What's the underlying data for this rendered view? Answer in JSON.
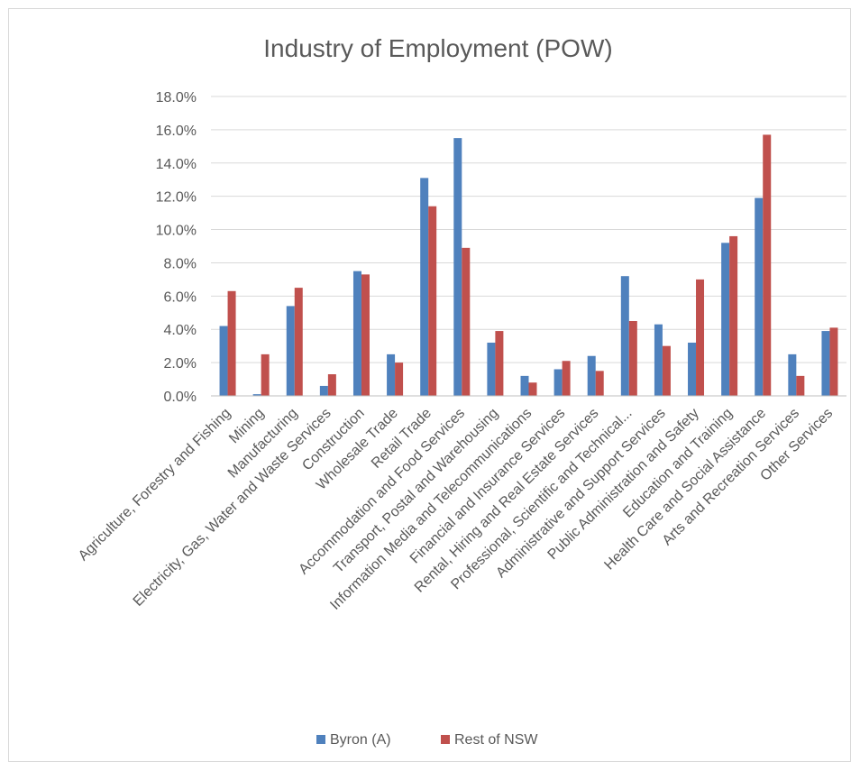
{
  "chart_data": {
    "type": "bar",
    "title": "Industry of Employment  (POW)",
    "xlabel": "",
    "ylabel": "",
    "ylim": [
      0,
      18
    ],
    "yticks": [
      "0.0%",
      "2.0%",
      "4.0%",
      "6.0%",
      "8.0%",
      "10.0%",
      "12.0%",
      "14.0%",
      "16.0%",
      "18.0%"
    ],
    "grid": true,
    "legend": "bottom",
    "colors": [
      "#4f81bd",
      "#c0504d"
    ],
    "categories": [
      "Agriculture, Forestry and Fishing",
      "Mining",
      "Manufacturing",
      "Electricity, Gas, Water and Waste Services",
      "Construction",
      "Wholesale Trade",
      "Retail Trade",
      "Accommodation and Food Services",
      "Transport, Postal and Warehousing",
      "Information Media and Telecommunications",
      "Financial and Insurance Services",
      "Rental, Hiring and Real Estate Services",
      "Professional, Scientific and Technical...",
      "Administrative and Support Services",
      "Public Administration and Safety",
      "Education and Training",
      "Health Care and Social Assistance",
      "Arts and Recreation Services",
      "Other Services"
    ],
    "series": [
      {
        "name": "Byron (A)",
        "values": [
          4.2,
          0.1,
          5.4,
          0.6,
          7.5,
          2.5,
          13.1,
          15.5,
          3.2,
          1.2,
          1.6,
          2.4,
          7.2,
          4.3,
          3.2,
          9.2,
          11.9,
          2.5,
          3.9
        ]
      },
      {
        "name": "Rest of NSW",
        "values": [
          6.3,
          2.5,
          6.5,
          1.3,
          7.3,
          2.0,
          11.4,
          8.9,
          3.9,
          0.8,
          2.1,
          1.5,
          4.5,
          3.0,
          7.0,
          9.6,
          15.7,
          1.2,
          4.1
        ]
      }
    ]
  }
}
